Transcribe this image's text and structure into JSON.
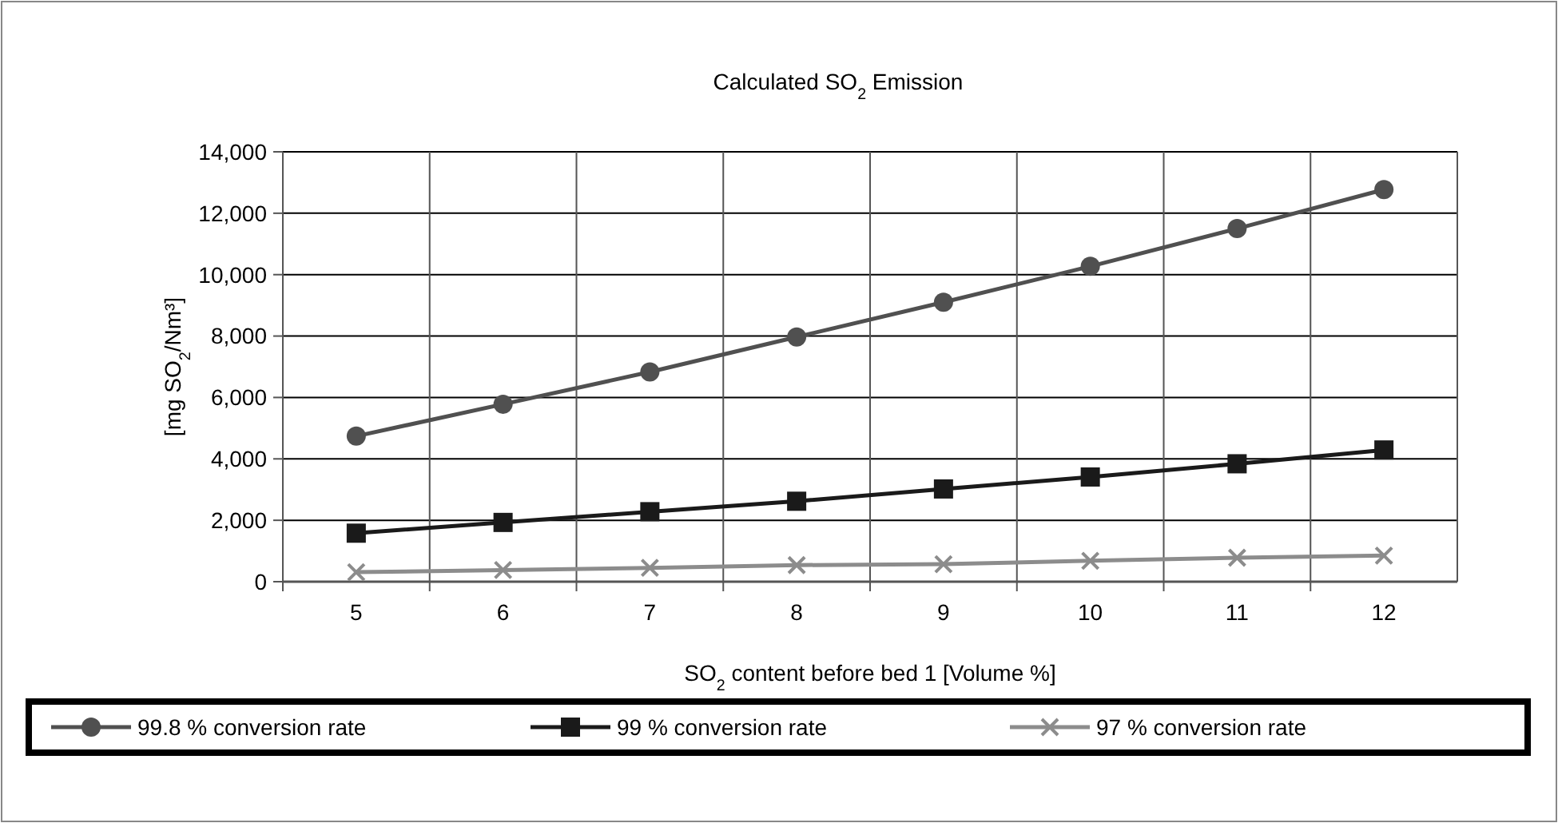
{
  "chart_data": {
    "type": "line",
    "title": "Calculated SO$_{2}$ Emission",
    "xlabel": "SO$_{2}$ content before bed 1 [Volume %]",
    "ylabel": "[mg SO$_{2}$/Nm³]",
    "categories": [
      "5",
      "6",
      "7",
      "8",
      "9",
      "10",
      "11",
      "12"
    ],
    "ylim": [
      0,
      14000
    ],
    "yticks": [
      {
        "value": 0,
        "label": "0"
      },
      {
        "value": 2000,
        "label": "2,000"
      },
      {
        "value": 4000,
        "label": "4,000"
      },
      {
        "value": 6000,
        "label": "6,000"
      },
      {
        "value": 8000,
        "label": "8,000"
      },
      {
        "value": 10000,
        "label": "10,000"
      },
      {
        "value": 12000,
        "label": "12,000"
      },
      {
        "value": 14000,
        "label": "14,000"
      }
    ],
    "grid": true,
    "legend": "bottom",
    "line_style": "solid",
    "series": [
      {
        "name": "99.8 % conversion rate",
        "color": "#505050",
        "marker": "circle",
        "values": [
          4740,
          5780,
          6830,
          7970,
          9100,
          10270,
          11500,
          12770
        ]
      },
      {
        "name": "99 % conversion rate",
        "color": "#1a1a1a",
        "marker": "square",
        "values": [
          1580,
          1930,
          2280,
          2620,
          3020,
          3410,
          3840,
          4290
        ]
      },
      {
        "name": "97 % conversion rate",
        "color": "#8c8c8c",
        "marker": "cross",
        "values": [
          310,
          380,
          450,
          540,
          570,
          680,
          780,
          850
        ]
      }
    ]
  }
}
